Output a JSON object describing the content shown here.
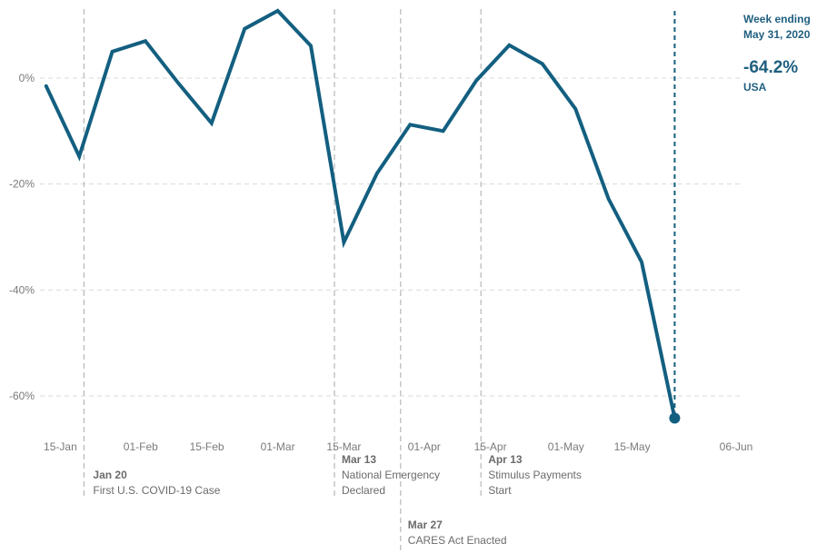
{
  "chart_data": {
    "type": "line",
    "title": "",
    "xlabel": "",
    "ylabel": "",
    "x_range": [
      "2020-01-13",
      "2020-06-06"
    ],
    "ylim": [
      -68,
      13
    ],
    "y_ticks": [
      0,
      -20,
      -40,
      -60
    ],
    "y_tick_labels": [
      "0%",
      "-20%",
      "-40%",
      "-60%"
    ],
    "x_ticks": [
      "2020-01-15",
      "2020-02-01",
      "2020-02-15",
      "2020-03-01",
      "2020-03-15",
      "2020-04-01",
      "2020-04-15",
      "2020-05-01",
      "2020-05-15",
      "2020-06-06"
    ],
    "x_tick_labels": [
      "15-Jan",
      "01-Feb",
      "15-Feb",
      "01-Mar",
      "15-Mar",
      "01-Apr",
      "15-Apr",
      "01-May",
      "15-May",
      "06-Jun"
    ],
    "grid": true,
    "line_color": "#135f80",
    "series": [
      {
        "x": [
          "2020-01-12",
          "2020-01-19",
          "2020-01-26",
          "2020-02-02",
          "2020-02-09",
          "2020-02-16",
          "2020-02-23",
          "2020-03-01",
          "2020-03-08",
          "2020-03-15",
          "2020-03-22",
          "2020-03-29",
          "2020-04-05",
          "2020-04-12",
          "2020-04-19",
          "2020-04-26",
          "2020-05-03",
          "2020-05-10",
          "2020-05-17",
          "2020-05-24",
          "2020-05-31"
        ],
        "values": [
          -1.5,
          -14.8,
          5.0,
          7.0,
          -1.0,
          -8.5,
          9.3,
          12.7,
          6.1,
          -31.0,
          -18.0,
          -8.8,
          -10.0,
          -0.5,
          6.2,
          2.7,
          -5.8,
          -22.8,
          -34.7,
          -64.2,
          null
        ]
      }
    ],
    "events": [
      {
        "date": "2020-01-20",
        "date_label": "Jan 20",
        "lines": [
          "First U.S. COVID-19 Case"
        ]
      },
      {
        "date": "2020-03-13",
        "date_label": "Mar 13",
        "lines": [
          "National Emergency",
          "Declared"
        ]
      },
      {
        "date": "2020-03-27",
        "date_label": "Mar 27",
        "lines": [
          "CARES Act Enacted"
        ]
      },
      {
        "date": "2020-04-13",
        "date_label": "Apr 13",
        "lines": [
          "Stimulus Payments",
          "Start"
        ]
      }
    ],
    "callout": {
      "date": "2020-05-31",
      "label_line1": "Week ending",
      "label_line2": "May 31, 2020",
      "value_label": "-64.2%",
      "region": "USA"
    }
  }
}
